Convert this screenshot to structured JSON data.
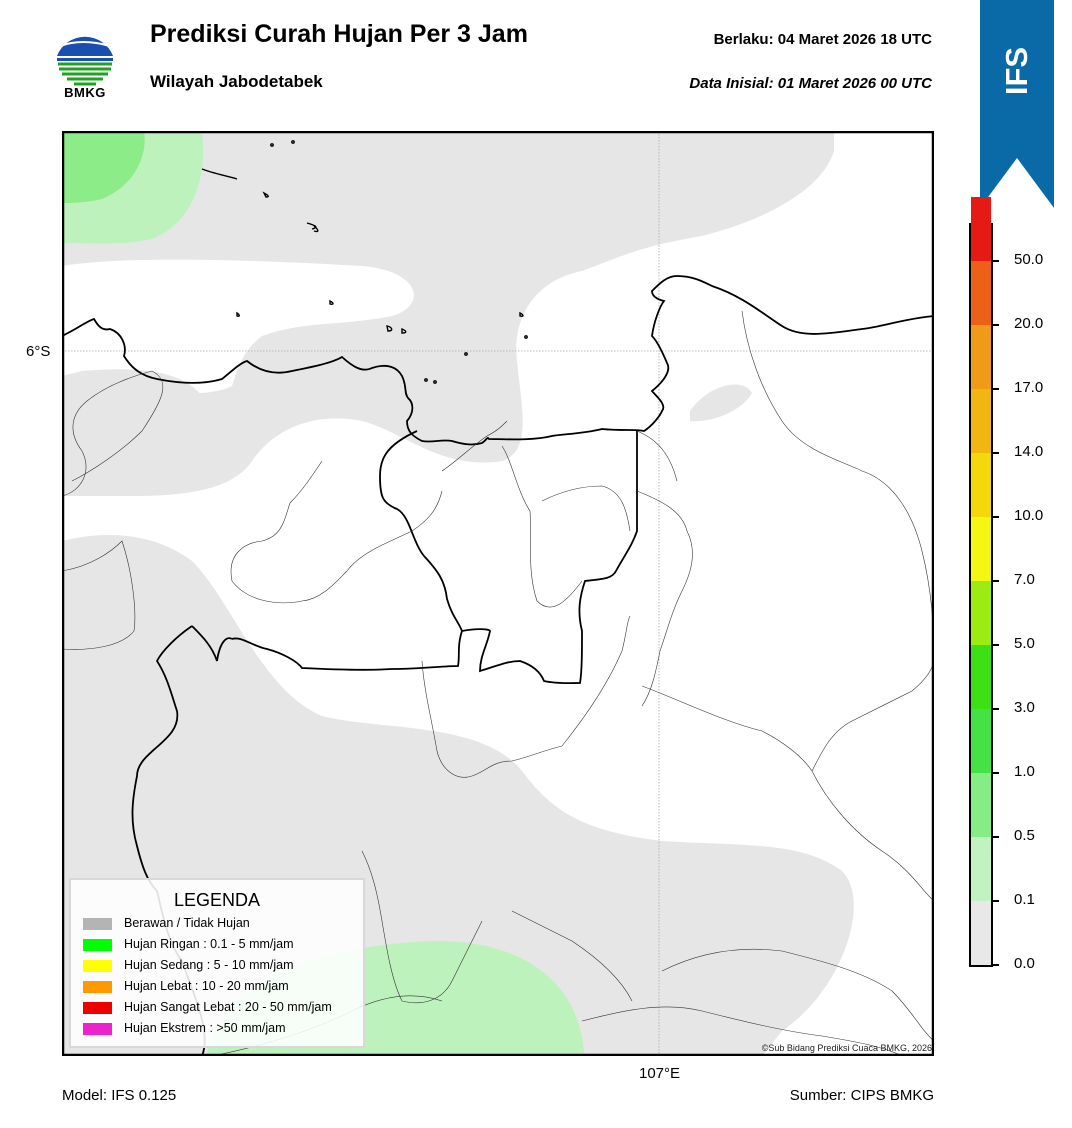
{
  "header": {
    "logo_text": "BMKG",
    "title": "Prediksi Curah Hujan Per 3 Jam",
    "subtitle": "Wilayah Jabodetabek",
    "berlaku": "Berlaku:  04 Maret 2026 18 UTC",
    "data_inisial": "Data Inisial:  01 Maret 2026 00 UTC",
    "ribbon_label": "IFS"
  },
  "map": {
    "lat_label": "6°S",
    "lon_label": "107°E",
    "copyright": "©Sub Bidang Prediksi Cuaca BMKG, 2026"
  },
  "legend": {
    "title": "LEGENDA",
    "items": [
      {
        "label": "Berawan / Tidak Hujan",
        "color": "#b4b4b4"
      },
      {
        "label": "Hujan Ringan : 0.1 - 5 mm/jam",
        "color": "#00ff00"
      },
      {
        "label": "Hujan Sedang : 5 - 10 mm/jam",
        "color": "#ffff00"
      },
      {
        "label": "Hujan Lebat : 10 - 20 mm/jam",
        "color": "#ff9900"
      },
      {
        "label": "Hujan Sangat Lebat : 20 - 50 mm/jam",
        "color": "#ee0000"
      },
      {
        "label": "Hujan Ekstrem : >50 mm/jam",
        "color": "#ee22cc"
      }
    ]
  },
  "colorbar": {
    "ticks": [
      "0.0",
      "0.1",
      "0.5",
      "1.0",
      "3.0",
      "5.0",
      "7.0",
      "10.0",
      "14.0",
      "17.0",
      "20.0",
      "50.0"
    ],
    "colors": [
      "#e8e8e8",
      "#c2f2c2",
      "#86ec86",
      "#44e244",
      "#3ce014",
      "#9cec14",
      "#f6f614",
      "#f4d80c",
      "#f2b612",
      "#f09a1a",
      "#ec6018",
      "#e61a14",
      "#e614c8"
    ]
  },
  "footer": {
    "model": "Model: IFS 0.125",
    "source": "Sumber: CIPS BMKG"
  },
  "colors": {
    "no_rain_area": "#e6e6e6",
    "light_green": "#bef2bd",
    "medium_green": "#8ced88",
    "ribbon_blue": "#0a6aa8"
  }
}
